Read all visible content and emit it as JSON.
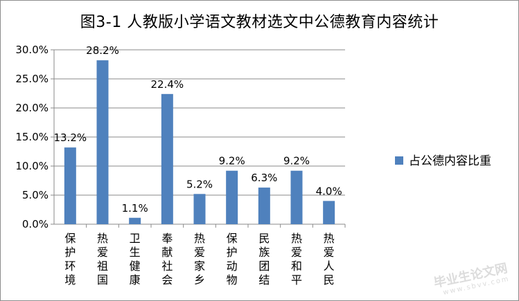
{
  "chart_data": {
    "type": "bar",
    "title": "图3-1 人教版小学语文教材选文中公德教育内容统计",
    "categories": [
      "保护环境",
      "热爱祖国",
      "卫生健康",
      "奉献社会",
      "热爱家乡",
      "保护动物",
      "民族团结",
      "热爱和平",
      "热爱人民"
    ],
    "series": [
      {
        "name": "占公德内容比重",
        "values": [
          13.2,
          28.2,
          1.1,
          22.4,
          5.2,
          9.2,
          6.3,
          9.2,
          4.0
        ],
        "color": "#4f81bd"
      }
    ],
    "data_labels": [
      "13.2%",
      "28.2%",
      "1.1%",
      "22.4%",
      "5.2%",
      "9.2%",
      "6.3%",
      "9.2%",
      "4.0%"
    ],
    "ylim": [
      0,
      30
    ],
    "yticks": [
      "0.0%",
      "5.0%",
      "10.0%",
      "15.0%",
      "20.0%",
      "25.0%",
      "30.0%"
    ],
    "ytick_values": [
      0,
      5,
      10,
      15,
      20,
      25,
      30
    ],
    "xlabel": "",
    "ylabel": "",
    "grid": true,
    "legend_position": "right"
  },
  "watermark": {
    "main": "毕业生论文网",
    "sub": "www.sbvv.com"
  }
}
